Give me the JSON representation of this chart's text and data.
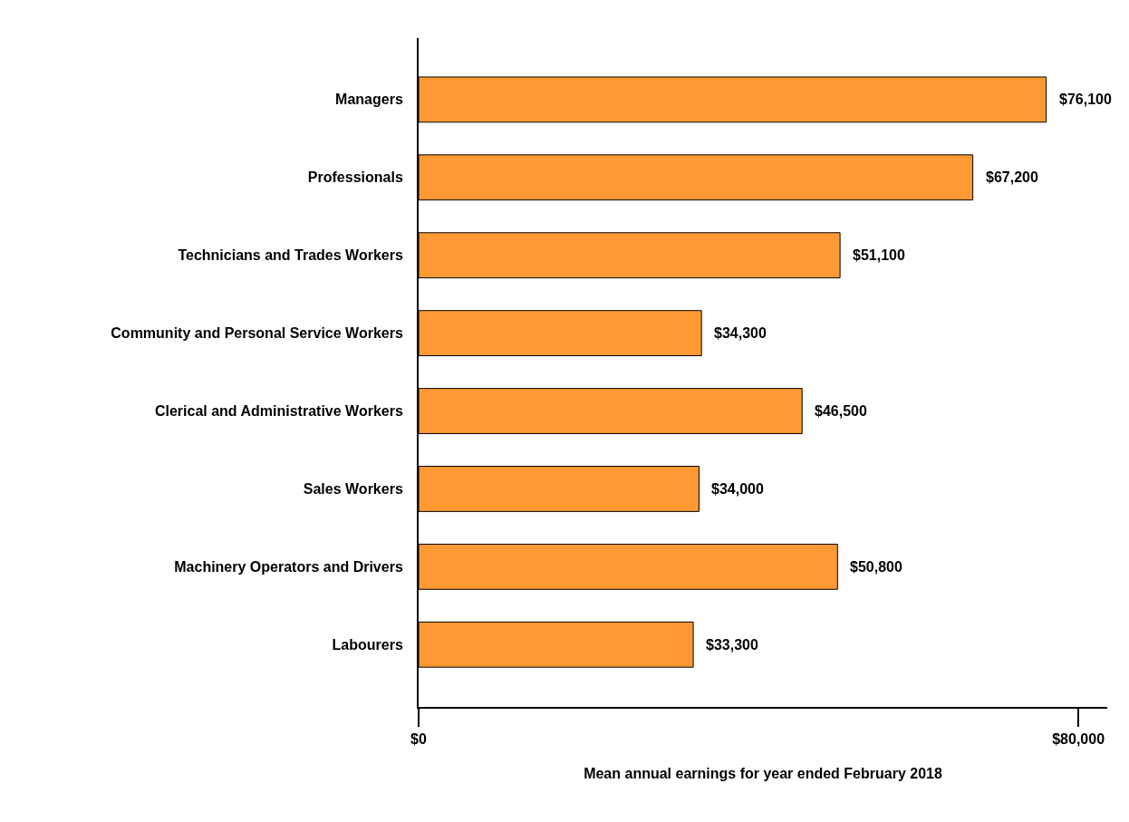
{
  "chart_data": {
    "type": "bar",
    "orientation": "horizontal",
    "xlabel": "Mean annual earnings for year ended February 2018",
    "categories": [
      "Managers",
      "Professionals",
      "Technicians and Trades Workers",
      "Community and Personal Service Workers",
      "Clerical and Administrative Workers",
      "Sales Workers",
      "Machinery Operators and Drivers",
      "Labourers"
    ],
    "values": [
      76100,
      67200,
      51100,
      34300,
      46500,
      34000,
      50800,
      33300
    ],
    "value_labels": [
      "$76,100",
      "$67,200",
      "$51,100",
      "$34,300",
      "$46,500",
      "$34,000",
      "$50,800",
      "$33,300"
    ],
    "color": "#ff9933",
    "xlim": [
      0,
      83500
    ],
    "xticks": [
      {
        "value": 0,
        "label": "$0"
      },
      {
        "value": 80000,
        "label": "$80,000"
      }
    ],
    "grid": false
  }
}
